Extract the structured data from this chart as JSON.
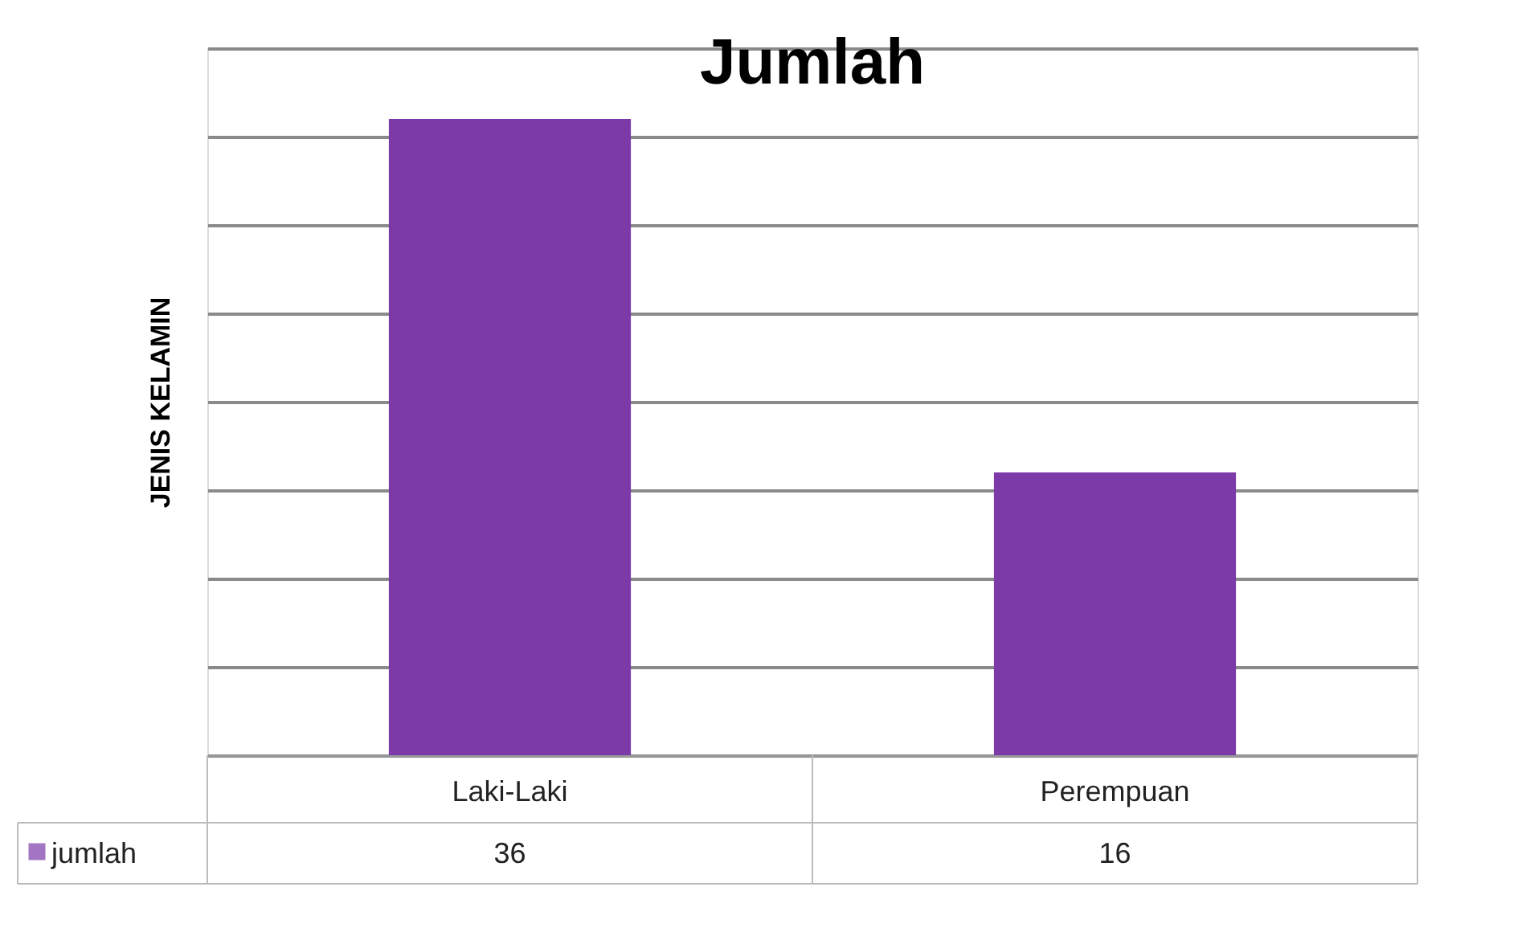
{
  "chart_data": {
    "type": "bar",
    "title": "Jumlah",
    "ylabel": "JENIS KELAMIN",
    "categories": [
      "Laki-Laki",
      "Perempuan"
    ],
    "series": [
      {
        "name": "jumlah",
        "color": "#7b3aa8",
        "values": [
          36,
          16
        ]
      }
    ],
    "ylim": [
      0,
      40
    ],
    "yticks": [
      {
        "value": 0,
        "label": null
      },
      {
        "value": 5,
        "label": null
      },
      {
        "value": 10,
        "label": null
      },
      {
        "value": 15,
        "label": null
      },
      {
        "value": 20,
        "label": null
      },
      {
        "value": 25,
        "label": null
      },
      {
        "value": 30,
        "label": null
      },
      {
        "value": 35,
        "label": null
      },
      {
        "value": 40,
        "label": null
      }
    ],
    "grid": "y",
    "tick_labels": "x",
    "data_labels": true,
    "legend": "bottom left"
  }
}
